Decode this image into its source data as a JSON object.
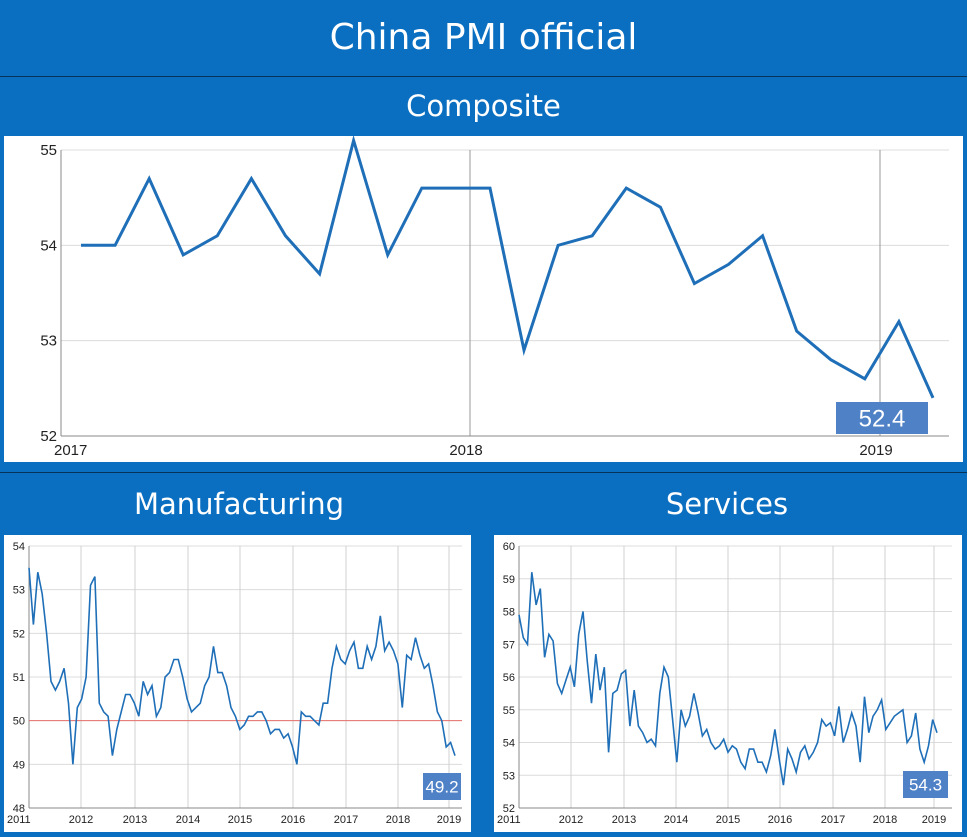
{
  "header": {
    "title": "China PMI official"
  },
  "chart_data": [
    {
      "id": "composite",
      "type": "line",
      "title": "Composite",
      "x_ticks": [
        "2017",
        "2018",
        "2019"
      ],
      "ylim": [
        52,
        55
      ],
      "y_ticks": [
        "52",
        "53",
        "54",
        "55"
      ],
      "values": [
        54.0,
        54.0,
        54.7,
        53.9,
        54.1,
        54.7,
        54.1,
        53.7,
        55.1,
        53.9,
        54.6,
        54.6,
        54.6,
        52.9,
        54.0,
        54.1,
        54.6,
        54.4,
        53.6,
        53.8,
        54.1,
        53.1,
        52.8,
        52.6,
        53.2,
        52.4
      ],
      "last_label": "52.4",
      "color": "#1f6fb8"
    },
    {
      "id": "manufacturing",
      "type": "line",
      "title": "Manufacturing",
      "x_ticks": [
        "2011",
        "2012",
        "2013",
        "2014",
        "2015",
        "2016",
        "2017",
        "2018",
        "2019"
      ],
      "ylim": [
        48,
        54
      ],
      "y_ticks": [
        "48",
        "49",
        "50",
        "51",
        "52",
        "53",
        "54"
      ],
      "reference_line": 50,
      "values": [
        53.5,
        52.2,
        53.4,
        52.9,
        52.0,
        50.9,
        50.7,
        50.9,
        51.2,
        50.4,
        49.0,
        50.3,
        50.5,
        51.0,
        53.1,
        53.3,
        50.4,
        50.2,
        50.1,
        49.2,
        49.8,
        50.2,
        50.6,
        50.6,
        50.4,
        50.1,
        50.9,
        50.6,
        50.8,
        50.1,
        50.3,
        51.0,
        51.1,
        51.4,
        51.4,
        51.0,
        50.5,
        50.2,
        50.3,
        50.4,
        50.8,
        51.0,
        51.7,
        51.1,
        51.1,
        50.8,
        50.3,
        50.1,
        49.8,
        49.9,
        50.1,
        50.1,
        50.2,
        50.2,
        50.0,
        49.7,
        49.8,
        49.8,
        49.6,
        49.7,
        49.4,
        49.0,
        50.2,
        50.1,
        50.1,
        50.0,
        49.9,
        50.4,
        50.4,
        51.2,
        51.7,
        51.4,
        51.3,
        51.6,
        51.8,
        51.2,
        51.2,
        51.7,
        51.4,
        51.7,
        52.4,
        51.6,
        51.8,
        51.6,
        51.3,
        50.3,
        51.5,
        51.4,
        51.9,
        51.5,
        51.2,
        51.3,
        50.8,
        50.2,
        50.0,
        49.4,
        49.5,
        49.2
      ],
      "last_label": "49.2",
      "color": "#1f6fb8"
    },
    {
      "id": "services",
      "type": "line",
      "title": "Services",
      "x_ticks": [
        "2011",
        "2012",
        "2013",
        "2014",
        "2015",
        "2016",
        "2017",
        "2018",
        "2019"
      ],
      "ylim": [
        52,
        60
      ],
      "y_ticks": [
        "52",
        "53",
        "54",
        "55",
        "56",
        "57",
        "58",
        "59",
        "60"
      ],
      "values": [
        57.9,
        57.2,
        57.0,
        59.2,
        58.2,
        58.7,
        56.6,
        57.3,
        57.1,
        55.8,
        55.5,
        55.9,
        56.3,
        55.7,
        57.3,
        58.0,
        56.5,
        55.2,
        56.7,
        55.6,
        56.3,
        53.7,
        55.5,
        55.6,
        56.1,
        56.2,
        54.5,
        55.6,
        54.5,
        54.3,
        54.0,
        54.1,
        53.9,
        55.5,
        56.3,
        56.0,
        54.7,
        53.4,
        55.0,
        54.5,
        54.8,
        55.5,
        54.9,
        54.2,
        54.4,
        54.0,
        53.8,
        53.9,
        54.1,
        53.7,
        53.9,
        53.8,
        53.4,
        53.2,
        53.8,
        53.8,
        53.4,
        53.4,
        53.1,
        53.6,
        54.4,
        53.5,
        52.7,
        53.8,
        53.5,
        53.1,
        53.7,
        53.9,
        53.5,
        53.7,
        54.0,
        54.7,
        54.5,
        54.6,
        54.2,
        55.1,
        54.0,
        54.4,
        54.9,
        54.5,
        53.4,
        55.4,
        54.3,
        54.8,
        55.0,
        55.3,
        54.4,
        54.6,
        54.8,
        54.9,
        55.0,
        54.0,
        54.2,
        54.9,
        53.8,
        53.4,
        53.9,
        54.7,
        54.3
      ],
      "last_label": "54.3",
      "color": "#1f6fb8"
    }
  ]
}
